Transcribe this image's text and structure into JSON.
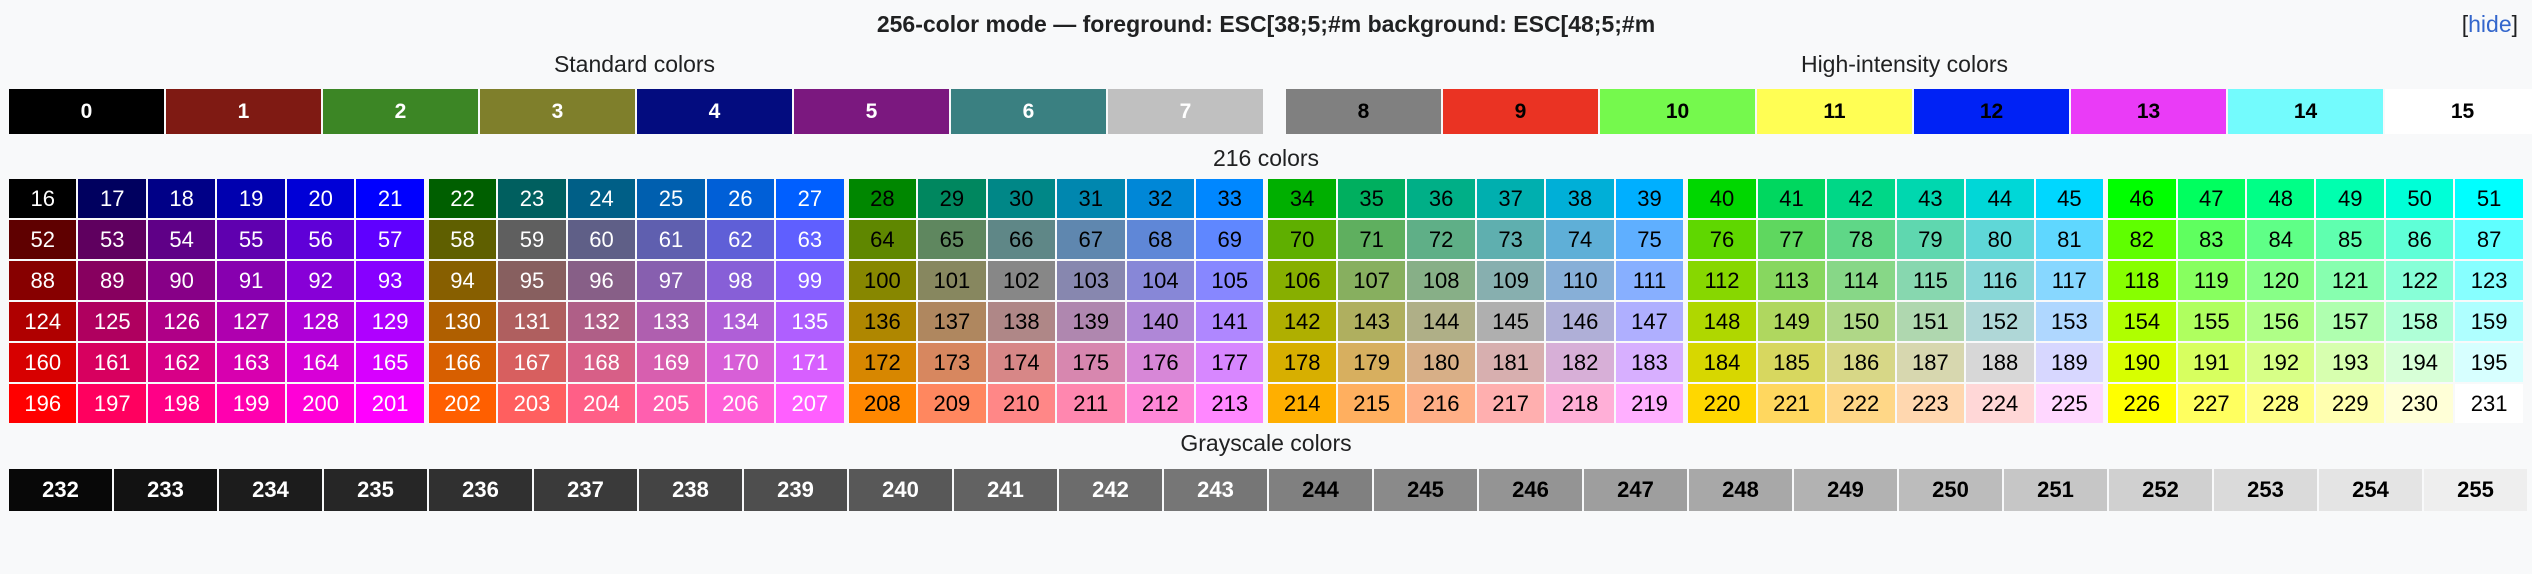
{
  "header": {
    "title": "256-color mode — foreground: ESC[38;5;#m   background: ESC[48;5;#m",
    "hide_open": "[",
    "hide_label": "hide",
    "hide_close": "]"
  },
  "captions": {
    "standard": "Standard colors",
    "high": "High-intensity colors",
    "cube": "216 colors",
    "gray": "Grayscale colors"
  },
  "standard_colors": [
    {
      "label": "0",
      "bg": "#000000",
      "fg": "#ffffff"
    },
    {
      "label": "1",
      "bg": "#7f1a13",
      "fg": "#ffffff"
    },
    {
      "label": "2",
      "bg": "#3c8625",
      "fg": "#ffffff"
    },
    {
      "label": "3",
      "bg": "#7f7f2b",
      "fg": "#ffffff"
    },
    {
      "label": "4",
      "bg": "#030c7f",
      "fg": "#ffffff"
    },
    {
      "label": "5",
      "bg": "#7b187f",
      "fg": "#ffffff"
    },
    {
      "label": "6",
      "bg": "#3a8081",
      "fg": "#ffffff"
    },
    {
      "label": "7",
      "bg": "#c0c0c0",
      "fg": "#ffffff"
    }
  ],
  "high_colors": [
    {
      "label": "8",
      "bg": "#808080",
      "fg": "#000000"
    },
    {
      "label": "9",
      "bg": "#ea3323",
      "fg": "#000000"
    },
    {
      "label": "10",
      "bg": "#75f94d",
      "fg": "#000000"
    },
    {
      "label": "11",
      "bg": "#fffe54",
      "fg": "#000000"
    },
    {
      "label": "12",
      "bg": "#0022f5",
      "fg": "#000000"
    },
    {
      "label": "13",
      "bg": "#ea3bf7",
      "fg": "#000000"
    },
    {
      "label": "14",
      "bg": "#73fbfd",
      "fg": "#000000"
    },
    {
      "label": "15",
      "bg": "#ffffff",
      "fg": "#000000"
    }
  ],
  "cube_levels": [
    0,
    95,
    135,
    175,
    215,
    255
  ],
  "cube_dark_text_greens": [
    2,
    3,
    4,
    5
  ],
  "gray_colors": [
    {
      "label": "232",
      "bg": "#080808",
      "fg": "#ffffff"
    },
    {
      "label": "233",
      "bg": "#121212",
      "fg": "#ffffff"
    },
    {
      "label": "234",
      "bg": "#1c1c1c",
      "fg": "#ffffff"
    },
    {
      "label": "235",
      "bg": "#262626",
      "fg": "#ffffff"
    },
    {
      "label": "236",
      "bg": "#303030",
      "fg": "#ffffff"
    },
    {
      "label": "237",
      "bg": "#3a3a3a",
      "fg": "#ffffff"
    },
    {
      "label": "238",
      "bg": "#444444",
      "fg": "#ffffff"
    },
    {
      "label": "239",
      "bg": "#4e4e4e",
      "fg": "#ffffff"
    },
    {
      "label": "240",
      "bg": "#585858",
      "fg": "#ffffff"
    },
    {
      "label": "241",
      "bg": "#626262",
      "fg": "#ffffff"
    },
    {
      "label": "242",
      "bg": "#6c6c6c",
      "fg": "#ffffff"
    },
    {
      "label": "243",
      "bg": "#767676",
      "fg": "#ffffff"
    },
    {
      "label": "244",
      "bg": "#808080",
      "fg": "#000000"
    },
    {
      "label": "245",
      "bg": "#8a8a8a",
      "fg": "#000000"
    },
    {
      "label": "246",
      "bg": "#949494",
      "fg": "#000000"
    },
    {
      "label": "247",
      "bg": "#9e9e9e",
      "fg": "#000000"
    },
    {
      "label": "248",
      "bg": "#a8a8a8",
      "fg": "#000000"
    },
    {
      "label": "249",
      "bg": "#b2b2b2",
      "fg": "#000000"
    },
    {
      "label": "250",
      "bg": "#bcbcbc",
      "fg": "#000000"
    },
    {
      "label": "251",
      "bg": "#c6c6c6",
      "fg": "#000000"
    },
    {
      "label": "252",
      "bg": "#d0d0d0",
      "fg": "#000000"
    },
    {
      "label": "253",
      "bg": "#dadada",
      "fg": "#000000"
    },
    {
      "label": "254",
      "bg": "#e4e4e4",
      "fg": "#000000"
    },
    {
      "label": "255",
      "bg": "#eeeeee",
      "fg": "#000000"
    }
  ]
}
